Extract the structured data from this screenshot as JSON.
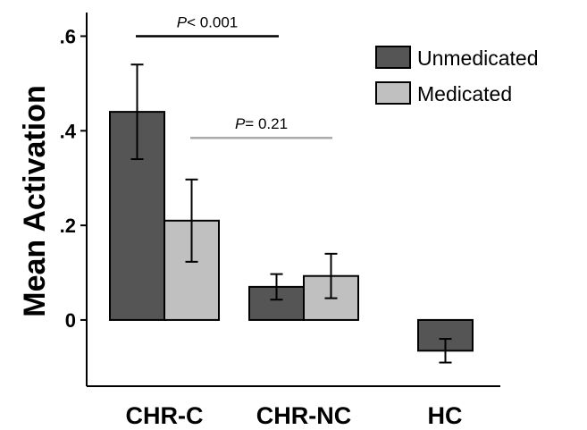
{
  "chart_data": {
    "type": "bar",
    "title": "",
    "xlabel": "",
    "ylabel": "Mean Activation",
    "ylim": [
      -0.14,
      0.65
    ],
    "yticks": [
      {
        "value": 0.6,
        "label": ".6"
      },
      {
        "value": 0.4,
        "label": ".4"
      },
      {
        "value": 0.2,
        "label": ".2"
      },
      {
        "value": 0.0,
        "label": "0"
      }
    ],
    "categories": [
      "CHR-C",
      "CHR-NC",
      "HC"
    ],
    "series": [
      {
        "name": "Unmedicated",
        "color": "#555555",
        "values": [
          0.44,
          0.07,
          -0.065
        ],
        "errors": [
          0.1,
          0.027,
          0.025
        ]
      },
      {
        "name": "Medicated",
        "color": "#c0c0c0",
        "values": [
          0.21,
          0.093,
          null
        ],
        "errors": [
          0.087,
          0.047,
          null
        ]
      }
    ],
    "legend": {
      "position": "top-right"
    },
    "grid": false,
    "annotations": [
      {
        "prefix": "P",
        "text": "< 0.001",
        "category": "CHR-C",
        "other_category": "CHR-NC",
        "series": "Unmedicated",
        "color": "#000000",
        "y": 0.6
      },
      {
        "prefix": "P",
        "text": "= 0.21",
        "category": "CHR-C",
        "other_category": "CHR-NC",
        "series": "Medicated",
        "color": "#aaaaaa",
        "y": 0.385
      }
    ]
  }
}
